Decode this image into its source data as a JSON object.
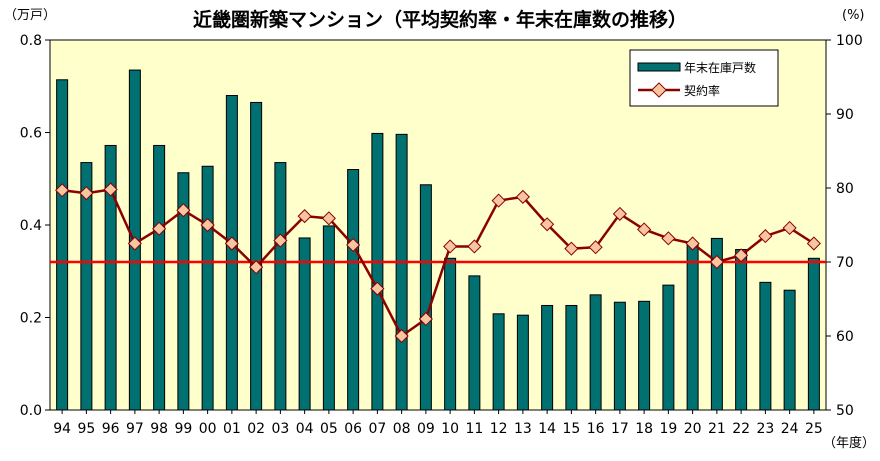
{
  "chart_data": {
    "type": "bar",
    "title": "近畿圏新築マンション（平均契約率・年末在庫数の推移）",
    "y_left_unit": "（万戸）",
    "y_right_unit": "(%)",
    "x_unit": "（年度）",
    "categories": [
      "94",
      "95",
      "96",
      "97",
      "98",
      "99",
      "00",
      "01",
      "02",
      "03",
      "04",
      "05",
      "06",
      "07",
      "08",
      "09",
      "10",
      "11",
      "12",
      "13",
      "14",
      "15",
      "16",
      "17",
      "18",
      "19",
      "20",
      "21",
      "22",
      "23",
      "24",
      "25"
    ],
    "series": [
      {
        "name": "年末在庫戸数",
        "axis": "left",
        "kind": "bar",
        "color": "#007070",
        "values": [
          0.714,
          0.535,
          0.572,
          0.735,
          0.572,
          0.513,
          0.527,
          0.68,
          0.665,
          0.535,
          0.372,
          0.398,
          0.52,
          0.598,
          0.596,
          0.487,
          0.328,
          0.29,
          0.208,
          0.205,
          0.226,
          0.226,
          0.249,
          0.233,
          0.235,
          0.27,
          0.358,
          0.371,
          0.347,
          0.276,
          0.259,
          0.328
        ]
      },
      {
        "name": "契約率",
        "axis": "right",
        "kind": "line",
        "color": "#8b0000",
        "marker_color": "#f7c6a0",
        "values": [
          79.7,
          79.3,
          79.8,
          72.5,
          74.5,
          77.0,
          75.0,
          72.5,
          69.3,
          72.9,
          76.2,
          75.9,
          72.3,
          66.4,
          60.0,
          62.3,
          72.1,
          72.1,
          78.3,
          78.8,
          75.1,
          71.8,
          72.0,
          76.5,
          74.4,
          73.2,
          72.5,
          70.0,
          70.9,
          73.5,
          74.6,
          72.5
        ]
      }
    ],
    "reference_line": {
      "axis": "right",
      "value": 70,
      "color": "#ff0000"
    },
    "y_left": {
      "lim": [
        0,
        0.8
      ],
      "ticks": [
        "0.0",
        "0.2",
        "0.4",
        "0.6",
        "0.8"
      ],
      "tick_values": [
        0,
        0.2,
        0.4,
        0.6,
        0.8
      ]
    },
    "y_right": {
      "lim": [
        50,
        100
      ],
      "ticks": [
        "50",
        "60",
        "70",
        "80",
        "90",
        "100"
      ],
      "tick_values": [
        50,
        60,
        70,
        80,
        90,
        100
      ]
    },
    "grid": false,
    "legend_position": "top-right",
    "plot_background": "#ffffcc"
  }
}
